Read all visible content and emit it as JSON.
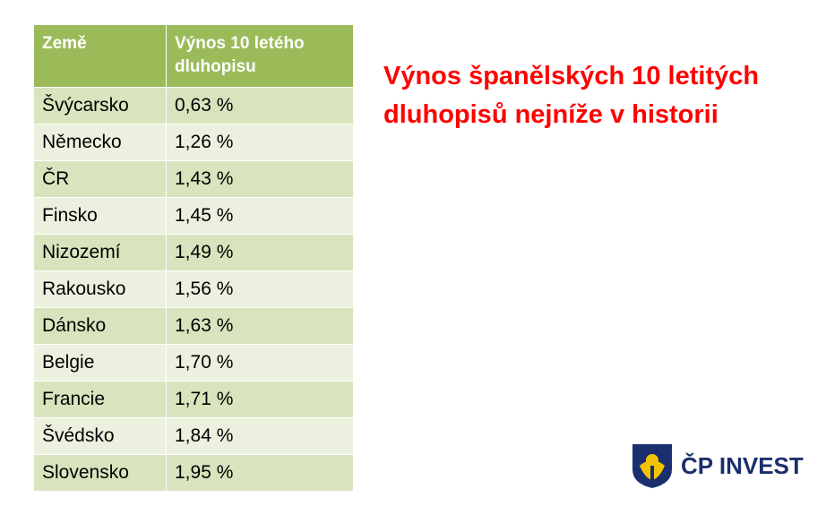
{
  "table": {
    "header": [
      "Země",
      "Výnos 10 letého dluhopisu"
    ],
    "rows": [
      [
        "Švýcarsko",
        "0,63 %"
      ],
      [
        "Německo",
        "1,26 %"
      ],
      [
        "ČR",
        "1,43 %"
      ],
      [
        "Finsko",
        "1,45 %"
      ],
      [
        "Nizozemí",
        "1,49 %"
      ],
      [
        "Rakousko",
        "1,56 %"
      ],
      [
        "Dánsko",
        "1,63 %"
      ],
      [
        "Belgie",
        "1,70 %"
      ],
      [
        "Francie",
        "1,71 %"
      ],
      [
        "Švédsko",
        "1,84 %"
      ],
      [
        "Slovensko",
        "1,95 %"
      ]
    ]
  },
  "headline": "Výnos španělských 10 letitých dluhopisů nejníže v historii",
  "logo": {
    "text": "ČP INVEST"
  }
}
